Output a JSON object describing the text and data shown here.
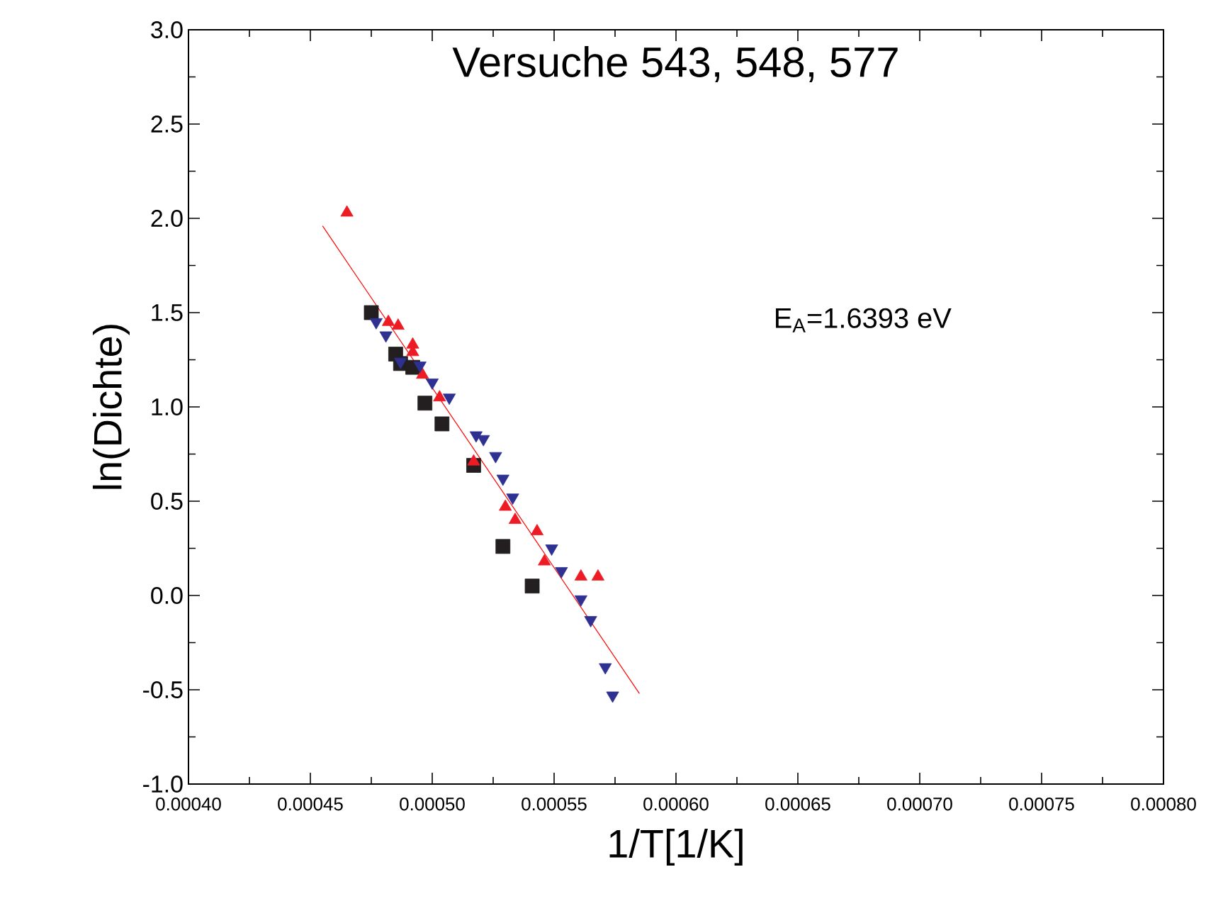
{
  "chart_data": {
    "type": "scatter",
    "title": "Versuche 543, 548, 577",
    "xlabel": "1/T[1/K]",
    "ylabel": "ln(Dichte)",
    "annotations": [
      "E$_{A}$=1.6393 eV"
    ],
    "xlim": [
      0.0004,
      0.0008
    ],
    "ylim": [
      -1.0,
      3.0
    ],
    "xticks": [
      {
        "value": 0.0004,
        "label": "0.00040"
      },
      {
        "value": 0.00045,
        "label": "0.00045"
      },
      {
        "value": 0.0005,
        "label": "0.00050"
      },
      {
        "value": 0.00055,
        "label": "0.00055"
      },
      {
        "value": 0.0006,
        "label": "0.00060"
      },
      {
        "value": 0.00065,
        "label": "0.00065"
      },
      {
        "value": 0.0007,
        "label": "0.00070"
      },
      {
        "value": 0.00075,
        "label": "0.00075"
      },
      {
        "value": 0.0008,
        "label": "0.00080"
      }
    ],
    "yticks": [
      {
        "value": -1.0,
        "label": "-1.0"
      },
      {
        "value": -0.5,
        "label": "-0.5"
      },
      {
        "value": 0.0,
        "label": "0.0"
      },
      {
        "value": 0.5,
        "label": "0.5"
      },
      {
        "value": 1.0,
        "label": "1.0"
      },
      {
        "value": 1.5,
        "label": "1.5"
      },
      {
        "value": 2.0,
        "label": "2.0"
      },
      {
        "value": 2.5,
        "label": "2.5"
      },
      {
        "value": 3.0,
        "label": "3.0"
      }
    ],
    "grid": false,
    "series": [
      {
        "color": "#231f20",
        "marker": "square",
        "x": [
          0.000475,
          0.000485,
          0.000487,
          0.000492,
          0.000497,
          0.000504,
          0.000517,
          0.000529,
          0.000541
        ],
        "values": [
          1.5,
          1.28,
          1.23,
          1.21,
          1.02,
          0.91,
          0.69,
          0.26,
          0.05
        ]
      },
      {
        "color": "#ed1c24",
        "marker": "triangle",
        "x": [
          0.000465,
          0.000482,
          0.000486,
          0.000492,
          0.000492,
          0.000496,
          0.000503,
          0.000517,
          0.00053,
          0.000534,
          0.000543,
          0.000546,
          0.000561,
          0.000568
        ],
        "values": [
          2.03,
          1.45,
          1.43,
          1.33,
          1.29,
          1.17,
          1.05,
          0.71,
          0.47,
          0.4,
          0.34,
          0.18,
          0.1,
          0.1
        ]
      },
      {
        "color": "#2e3192",
        "marker": "triangle_down",
        "x": [
          0.000477,
          0.000481,
          0.000487,
          0.000495,
          0.0005,
          0.000507,
          0.000518,
          0.000521,
          0.000526,
          0.000529,
          0.000533,
          0.000549,
          0.000553,
          0.000561,
          0.000565,
          0.000571,
          0.000574
        ],
        "values": [
          1.45,
          1.38,
          1.24,
          1.22,
          1.13,
          1.05,
          0.85,
          0.83,
          0.74,
          0.62,
          0.52,
          0.25,
          0.13,
          -0.02,
          -0.13,
          -0.38,
          -0.53
        ]
      },
      {
        "type": "line",
        "color": "#ff0000",
        "marker": "none",
        "line_style": "solid",
        "x": [
          0.000455,
          0.000585
        ],
        "values": [
          1.96,
          -0.52
        ]
      }
    ]
  }
}
